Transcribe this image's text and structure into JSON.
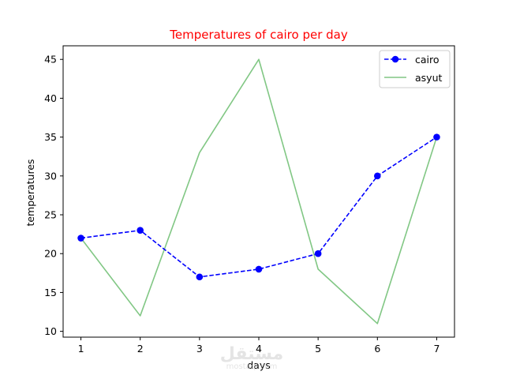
{
  "chart_data": {
    "type": "line",
    "title": "Temperatures of cairo per day",
    "title_color": "#ff0000",
    "xlabel": "days",
    "ylabel": "temperatures",
    "x": [
      1,
      2,
      3,
      4,
      5,
      6,
      7
    ],
    "xlim": [
      0.7,
      7.3
    ],
    "ylim": [
      9.25,
      46.75
    ],
    "xticks": [
      "1",
      "2",
      "3",
      "4",
      "5",
      "6",
      "7"
    ],
    "yticks": [
      "10",
      "15",
      "20",
      "25",
      "30",
      "35",
      "40",
      "45"
    ],
    "grid": false,
    "legend_position": "top-right",
    "series": [
      {
        "name": "cairo",
        "values": [
          22,
          23,
          17,
          18,
          20,
          30,
          35
        ],
        "color": "#0000ff",
        "style": "dashed",
        "marker": "circle"
      },
      {
        "name": "asyut",
        "values": [
          22,
          12,
          33,
          45,
          18,
          11,
          35
        ],
        "color": "#4caf50",
        "style": "solid",
        "marker": "none"
      }
    ]
  },
  "watermark": {
    "text": "مستقل",
    "subtext": "mostaql.com"
  }
}
